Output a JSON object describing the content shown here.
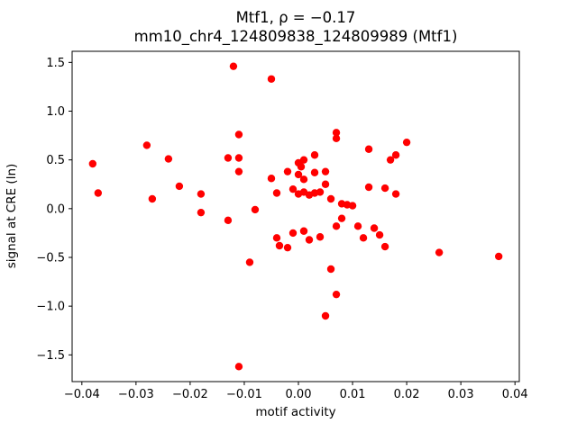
{
  "chart_data": {
    "type": "scatter",
    "title": "Mtf1, ρ = −0.17",
    "subtitle": "mm10_chr4_124809838_124809989 (Mtf1)",
    "xlabel": "motif activity",
    "ylabel": "signal at CRE (ln)",
    "xlim": [
      -0.0418,
      0.0408
    ],
    "ylim": [
      -1.774,
      1.614
    ],
    "xticks": [
      -0.04,
      -0.03,
      -0.02,
      -0.01,
      0.0,
      0.01,
      0.02,
      0.03,
      0.04
    ],
    "yticks": [
      -1.5,
      -1.0,
      -0.5,
      0.0,
      0.5,
      1.0,
      1.5
    ],
    "grid": false,
    "legend": "none",
    "marker_color": "#ff0000",
    "marker_radius_px": 4.2,
    "points": [
      [
        -0.038,
        0.46
      ],
      [
        -0.037,
        0.16
      ],
      [
        -0.028,
        0.65
      ],
      [
        -0.027,
        0.1
      ],
      [
        -0.024,
        0.51
      ],
      [
        -0.022,
        0.23
      ],
      [
        -0.018,
        0.15
      ],
      [
        -0.018,
        -0.04
      ],
      [
        -0.013,
        0.52
      ],
      [
        -0.013,
        -0.12
      ],
      [
        -0.012,
        1.46
      ],
      [
        -0.011,
        -1.62
      ],
      [
        -0.011,
        0.76
      ],
      [
        -0.011,
        0.52
      ],
      [
        -0.011,
        0.38
      ],
      [
        -0.009,
        -0.55
      ],
      [
        -0.008,
        -0.01
      ],
      [
        -0.005,
        1.33
      ],
      [
        -0.005,
        0.31
      ],
      [
        -0.004,
        0.16
      ],
      [
        -0.004,
        -0.3
      ],
      [
        -0.0035,
        -0.38
      ],
      [
        -0.002,
        -0.4
      ],
      [
        -0.002,
        0.38
      ],
      [
        -0.001,
        0.2
      ],
      [
        -0.001,
        -0.25
      ],
      [
        0.0,
        0.47
      ],
      [
        0.0,
        0.35
      ],
      [
        0.0,
        0.15
      ],
      [
        0.0005,
        0.43
      ],
      [
        0.001,
        0.5
      ],
      [
        0.001,
        0.3
      ],
      [
        0.001,
        0.17
      ],
      [
        0.001,
        -0.23
      ],
      [
        0.002,
        -0.32
      ],
      [
        0.002,
        0.14
      ],
      [
        0.003,
        0.55
      ],
      [
        0.003,
        0.37
      ],
      [
        0.003,
        0.16
      ],
      [
        0.004,
        0.17
      ],
      [
        0.004,
        -0.29
      ],
      [
        0.005,
        0.38
      ],
      [
        0.005,
        0.25
      ],
      [
        0.005,
        -1.1
      ],
      [
        0.006,
        0.1
      ],
      [
        0.006,
        -0.62
      ],
      [
        0.007,
        0.78
      ],
      [
        0.007,
        0.72
      ],
      [
        0.007,
        -0.18
      ],
      [
        0.007,
        -0.88
      ],
      [
        0.008,
        0.05
      ],
      [
        0.008,
        -0.1
      ],
      [
        0.009,
        0.04
      ],
      [
        0.01,
        0.03
      ],
      [
        0.011,
        -0.18
      ],
      [
        0.012,
        -0.3
      ],
      [
        0.013,
        0.61
      ],
      [
        0.013,
        0.22
      ],
      [
        0.014,
        -0.2
      ],
      [
        0.015,
        -0.27
      ],
      [
        0.016,
        0.21
      ],
      [
        0.016,
        -0.39
      ],
      [
        0.017,
        0.5
      ],
      [
        0.018,
        0.55
      ],
      [
        0.018,
        0.15
      ],
      [
        0.02,
        0.68
      ],
      [
        0.026,
        -0.45
      ],
      [
        0.037,
        -0.49
      ]
    ]
  }
}
